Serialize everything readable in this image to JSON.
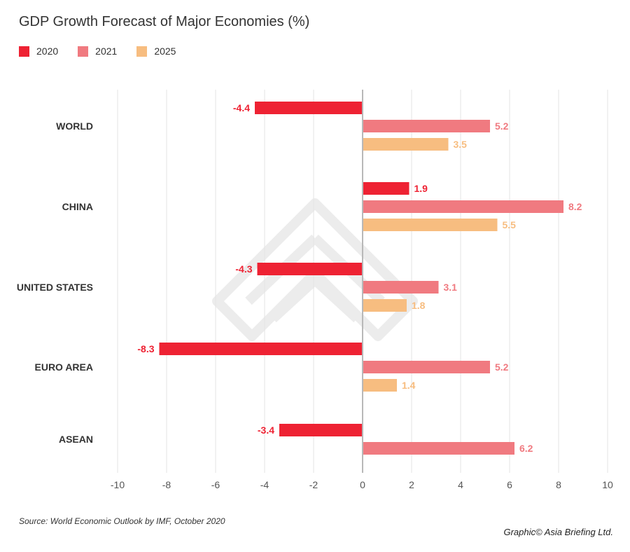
{
  "title": "GDP Growth Forecast of Major Economies (%)",
  "legend": [
    {
      "label": "2020",
      "color": "#ee2233"
    },
    {
      "label": "2021",
      "color": "#f07a80"
    },
    {
      "label": "2025",
      "color": "#f7bd80"
    }
  ],
  "source": "Source: World Economic Outlook by IMF, October 2020",
  "credit": "Graphic© Asia Briefing Ltd.",
  "chart_data": {
    "type": "bar",
    "orientation": "horizontal",
    "categories": [
      "WORLD",
      "CHINA",
      "UNITED STATES",
      "EURO AREA",
      "ASEAN"
    ],
    "series": [
      {
        "name": "2020",
        "color": "#ee2233",
        "values": [
          -4.4,
          1.9,
          -4.3,
          -8.3,
          -3.4
        ]
      },
      {
        "name": "2021",
        "color": "#f07a80",
        "values": [
          5.2,
          8.2,
          3.1,
          5.2,
          6.2
        ]
      },
      {
        "name": "2025",
        "color": "#f7bd80",
        "values": [
          3.5,
          5.5,
          1.8,
          1.4,
          null
        ]
      }
    ],
    "xlim": [
      -10,
      10
    ],
    "xticks": [
      -10,
      -8,
      -6,
      -4,
      -2,
      0,
      2,
      4,
      6,
      8,
      10
    ],
    "grid": true,
    "legend_position": "top-left"
  }
}
